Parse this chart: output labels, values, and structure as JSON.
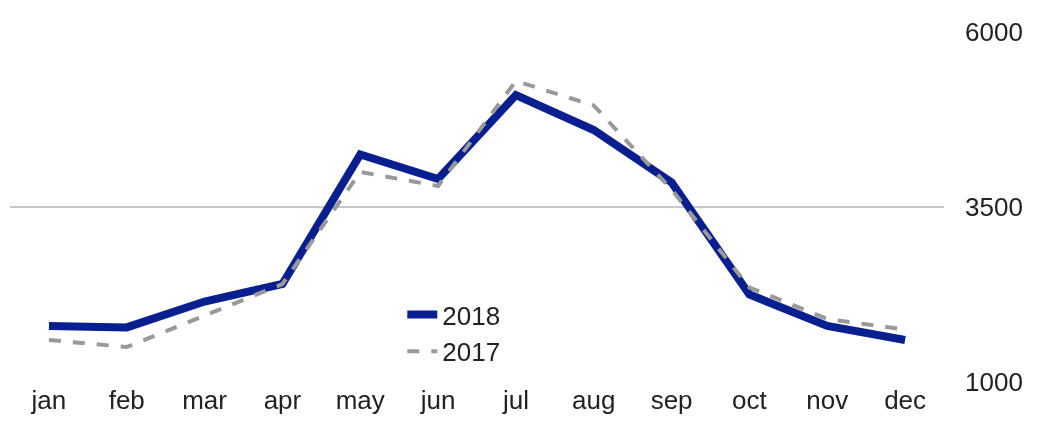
{
  "chart_data": {
    "type": "line",
    "categories": [
      "jan",
      "feb",
      "mar",
      "apr",
      "may",
      "jun",
      "jul",
      "aug",
      "sep",
      "oct",
      "nov",
      "dec"
    ],
    "series": [
      {
        "name": "2018",
        "color": "#0a1f8f",
        "line_style": "solid",
        "values": [
          1800,
          1780,
          2150,
          2400,
          4250,
          3900,
          5100,
          4600,
          3850,
          2250,
          1800,
          1600
        ]
      },
      {
        "name": "2017",
        "color": "#999999",
        "line_style": "dashed",
        "values": [
          1600,
          1500,
          1950,
          2400,
          4000,
          3800,
          5300,
          4950,
          3750,
          2350,
          1900,
          1750
        ]
      }
    ],
    "ylim": [
      1000,
      6000
    ],
    "yticks": [
      1000,
      3500,
      6000
    ],
    "grid": "y",
    "legend": "bottom",
    "marker": "none"
  }
}
